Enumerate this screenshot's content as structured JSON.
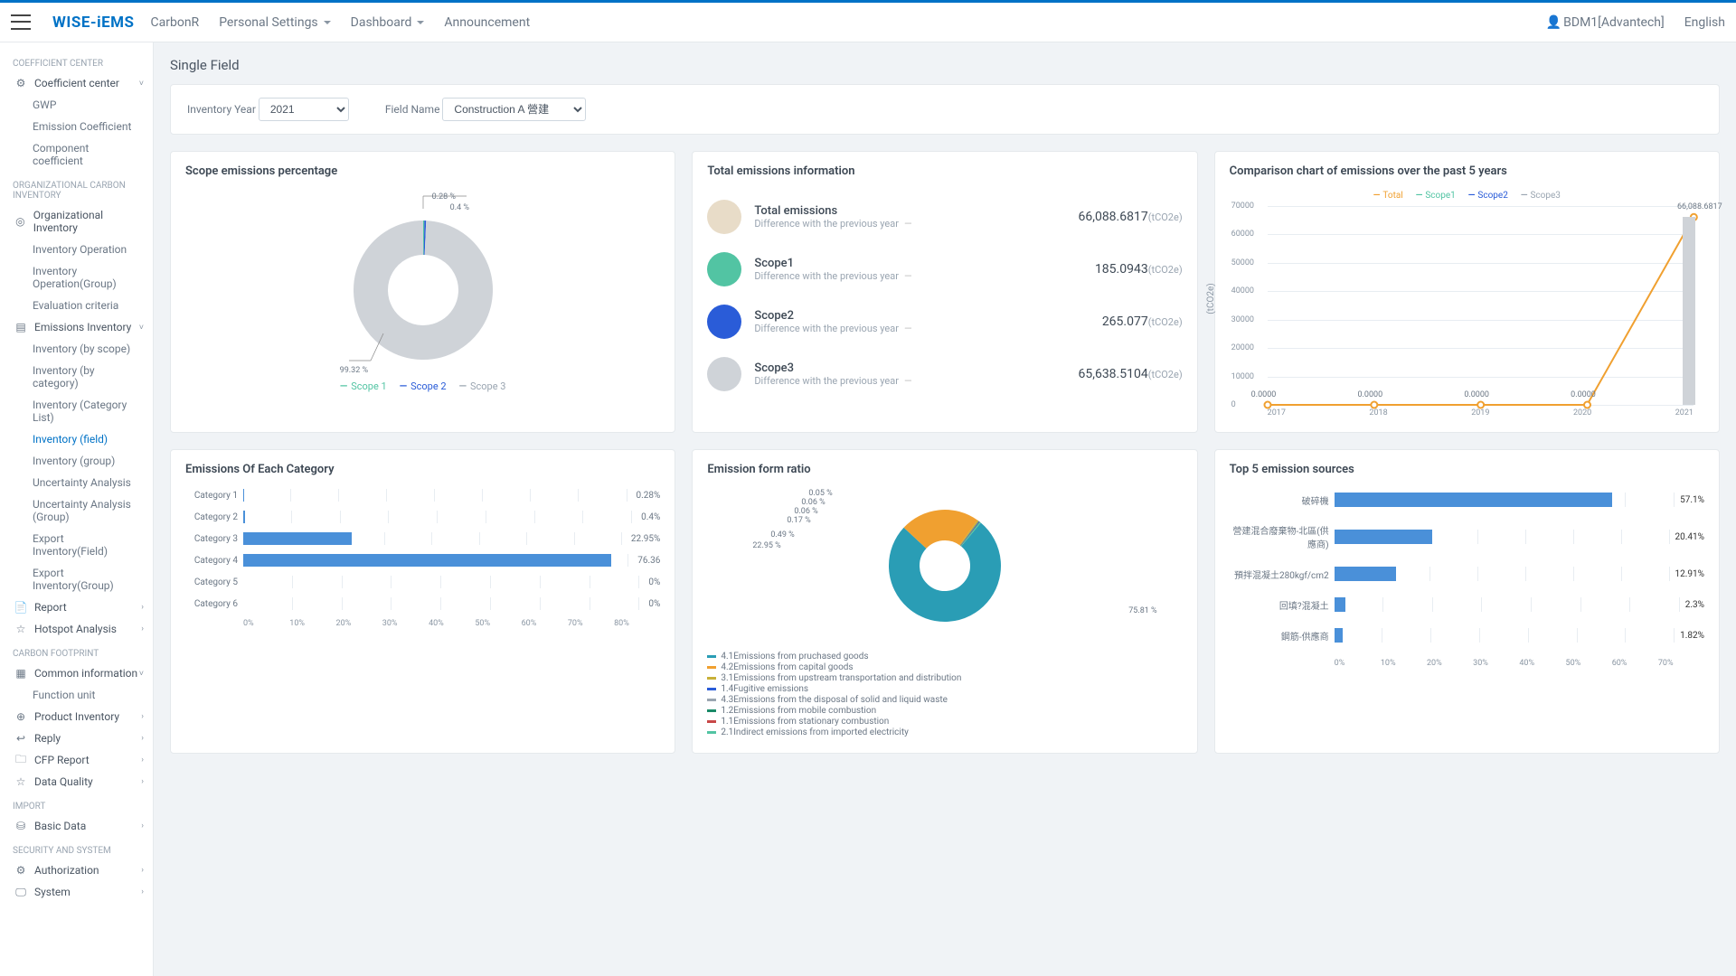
{
  "header": {
    "logo": "WISE-iEMS",
    "nav": {
      "carbon": "CarbonR",
      "personal": "Personal Settings",
      "dashboard": "Dashboard",
      "announcement": "Announcement"
    },
    "user": "BDM1[Advantech]",
    "lang": "English"
  },
  "sidebar": {
    "s1": "COEFFICIENT CENTER",
    "coeff": "Coefficient center",
    "gwp": "GWP",
    "emcoef": "Emission Coefficient",
    "compcoef": "Component coefficient",
    "s2": "ORGANIZATIONAL CARBON INVENTORY",
    "orginv": "Organizational Inventory",
    "invop": "Inventory Operation",
    "invopg": "Inventory Operation(Group)",
    "evalc": "Evaluation criteria",
    "eminv": "Emissions Inventory",
    "invsc": "Inventory (by scope)",
    "invcat": "Inventory (by category)",
    "invcl": "Inventory (Category List)",
    "invfld": "Inventory (field)",
    "invgrp": "Inventory (group)",
    "unca": "Uncertainty Analysis",
    "uncag": "Uncertainty Analysis (Group)",
    "expf": "Export Inventory(Field)",
    "expg": "Export Inventory(Group)",
    "report": "Report",
    "hotspot": "Hotspot Analysis",
    "s3": "CARBON FOOTPRINT",
    "cominfo": "Common information",
    "funit": "Function unit",
    "prodinv": "Product Inventory",
    "reply": "Reply",
    "cfprep": "CFP Report",
    "dq": "Data Quality",
    "s4": "IMPORT",
    "bdata": "Basic Data",
    "s5": "SECURITY AND SYSTEM",
    "auth": "Authorization",
    "sys": "System"
  },
  "page": {
    "title": "Single Field",
    "filter": {
      "yearLabel": "Inventory Year",
      "year": "2021",
      "fieldLabel": "Field Name",
      "field": "Construction A 營建"
    }
  },
  "cards": {
    "scope": {
      "title": "Scope emissions percentage",
      "labels": {
        "a": "0.28 %",
        "b": "0.4 %",
        "c": "99.32 %"
      },
      "legend": {
        "s1": "Scope 1",
        "s2": "Scope 2",
        "s3": "Scope 3"
      },
      "colors": {
        "s1": "#52c4a3",
        "s2": "#2a5cd8",
        "s3": "#cfd3d8"
      },
      "slices": {
        "s1": 0.28,
        "s2": 0.4,
        "s3": 99.32
      }
    },
    "total": {
      "title": "Total emissions information",
      "unit": "(tCO2e)",
      "diff": "Difference with the previous year",
      "rows": [
        {
          "label": "Total emissions",
          "value": "66,088.6817",
          "color": "#e8dcc8"
        },
        {
          "label": "Scope1",
          "value": "185.0943",
          "color": "#52c4a3"
        },
        {
          "label": "Scope2",
          "value": "265.077",
          "color": "#2a5cd8"
        },
        {
          "label": "Scope3",
          "value": "65,638.5104",
          "color": "#cfd3d8"
        }
      ]
    },
    "comp": {
      "title": "Comparison chart of emissions over the past 5 years",
      "legend": {
        "total": "Total",
        "s1": "Scope1",
        "s2": "Scope2",
        "s3": "Scope3"
      },
      "colors": {
        "total": "#f0a030",
        "s1": "#52c4a3",
        "s2": "#2a5cd8",
        "s3": "#9aa5b1"
      },
      "yunit": "(tCO2e)",
      "ymax": 70000,
      "ystep": 10000,
      "years": [
        "2017",
        "2018",
        "2019",
        "2020",
        "2021"
      ],
      "pointLabels": [
        "0.0000",
        "0.0000",
        "0.0000",
        "0.0000",
        "66,088.6817"
      ],
      "values": [
        0,
        0,
        0,
        0,
        66088.6817
      ]
    },
    "cat": {
      "title": "Emissions Of Each Category",
      "xmax": 80,
      "xstep": 10,
      "rows": [
        {
          "label": "Category 1",
          "pct": 0.28,
          "text": "0.28%"
        },
        {
          "label": "Category 2",
          "pct": 0.4,
          "text": "0.4%"
        },
        {
          "label": "Category 3",
          "pct": 22.95,
          "text": "22.95%"
        },
        {
          "label": "Category 4",
          "pct": 76.36,
          "text": "76.36"
        },
        {
          "label": "Category 5",
          "pct": 0,
          "text": "0%"
        },
        {
          "label": "Category 6",
          "pct": 0,
          "text": "0%"
        }
      ]
    },
    "form": {
      "title": "Emission form ratio",
      "slices": [
        {
          "pct": 75.81,
          "label": "75.81 %",
          "color": "#2a9db5",
          "legend": "4.1Emissions from pruchased goods"
        },
        {
          "pct": 22.95,
          "label": "22.95 %",
          "color": "#f0a030",
          "legend": "4.2Emissions from capital goods"
        },
        {
          "pct": 0.49,
          "label": "0.49 %",
          "color": "#c8b038",
          "legend": "3.1Emissions from upstream transportation and  distribution"
        },
        {
          "pct": 0.17,
          "label": "0.17 %",
          "color": "#2a5cd8",
          "legend": "1.4Fugitive  emissions"
        },
        {
          "pct": 0.06,
          "label": "0.06 %",
          "color": "#9aa5b1",
          "legend": "4.3Emissions from the disposal of solid and liquid waste"
        },
        {
          "pct": 0.06,
          "label": "0.06 %",
          "color": "#1a8a68",
          "legend": "1.2Emissions from mobile combustion"
        },
        {
          "pct": 0.05,
          "label": "0.05 %",
          "color": "#c84848",
          "legend": "1.1Emissions from stationary combustion"
        },
        {
          "pct": 0.4,
          "label": "",
          "color": "#52c4a3",
          "legend": "2.1Indirect emissions from imported electricity"
        }
      ]
    },
    "top5": {
      "title": "Top 5 emission sources",
      "xmax": 70,
      "xstep": 10,
      "rows": [
        {
          "label": "破碎機",
          "pct": 57.1,
          "text": "57.1%"
        },
        {
          "label": "營建混合廢棄物-北區(供應商)",
          "pct": 20.41,
          "text": "20.41%"
        },
        {
          "label": "預拌混凝土280kgf/cm2",
          "pct": 12.91,
          "text": "12.91%"
        },
        {
          "label": "回填?混凝土",
          "pct": 2.3,
          "text": "2.3%"
        },
        {
          "label": "鋼筋-供應商",
          "pct": 1.82,
          "text": "1.82%"
        }
      ]
    }
  }
}
